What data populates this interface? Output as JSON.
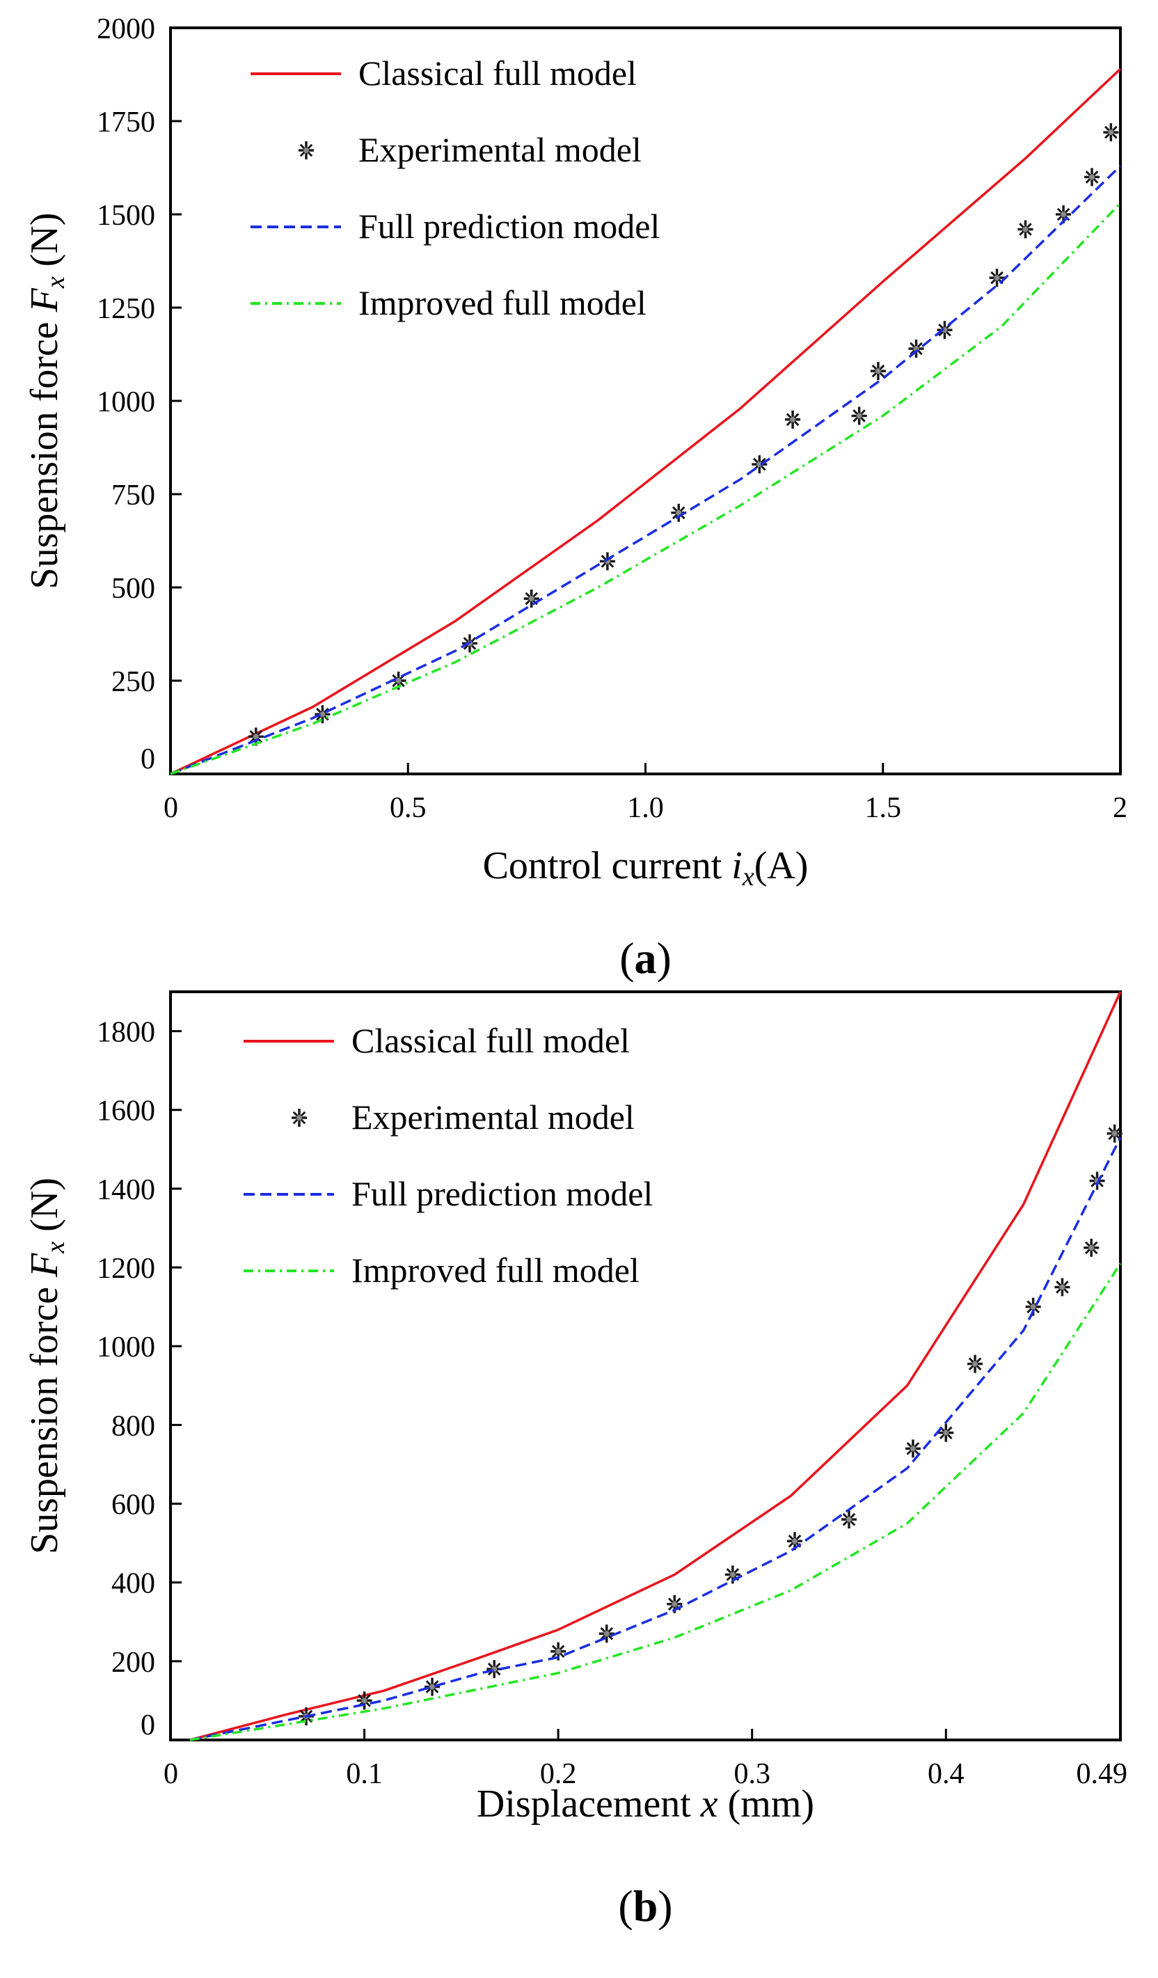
{
  "chart_data": [
    {
      "type": "line",
      "panel_label": "a",
      "xlabel": {
        "prefix": "Control current ",
        "var": "i",
        "sub": "x",
        "suffix": "(A)"
      },
      "ylabel": {
        "prefix": "Suspension force ",
        "var": "F",
        "sub": "x",
        "suffix": " (N)"
      },
      "xlim": [
        0,
        2
      ],
      "ylim": [
        0,
        2000
      ],
      "xticks": [
        0,
        0.5,
        1.0,
        1.5,
        2
      ],
      "xtick_labels": [
        "0",
        "0.5",
        "1.0",
        "1.5",
        "2"
      ],
      "yticks": [
        0,
        250,
        500,
        750,
        1000,
        1250,
        1500,
        1750,
        2000
      ],
      "ytick_labels": [
        "0",
        "250",
        "500",
        "750",
        "1000",
        "1250",
        "1500",
        "1750",
        "2000"
      ],
      "legend_position": "top-left",
      "grid": false,
      "series": [
        {
          "name": "Classical full model",
          "style": "solid",
          "color": "#e8141c",
          "x": [
            0,
            0.3,
            0.6,
            0.9,
            1.2,
            1.5,
            1.8,
            2.0
          ],
          "y": [
            0,
            180,
            410,
            680,
            980,
            1320,
            1650,
            1890
          ]
        },
        {
          "name": "Experimental model",
          "style": "markers",
          "color": "#1a1a1a",
          "x": [
            0.18,
            0.32,
            0.48,
            0.63,
            0.76,
            0.92,
            1.07,
            1.24,
            1.31,
            1.45,
            1.49,
            1.57,
            1.63,
            1.74,
            1.8,
            1.88,
            1.94,
            1.98
          ],
          "y": [
            100,
            160,
            250,
            350,
            470,
            570,
            700,
            830,
            950,
            960,
            1080,
            1140,
            1190,
            1330,
            1460,
            1500,
            1600,
            1720
          ]
        },
        {
          "name": "Full prediction model",
          "style": "dashed",
          "color": "#1a2ee0",
          "x": [
            0,
            0.3,
            0.6,
            0.9,
            1.2,
            1.5,
            1.75,
            2.0
          ],
          "y": [
            0,
            150,
            330,
            560,
            790,
            1060,
            1320,
            1630
          ]
        },
        {
          "name": "Improved full model",
          "style": "dashdot",
          "color": "#22e622",
          "x": [
            0,
            0.3,
            0.6,
            0.9,
            1.2,
            1.5,
            1.75,
            2.0
          ],
          "y": [
            0,
            135,
            300,
            500,
            720,
            960,
            1200,
            1530
          ]
        }
      ]
    },
    {
      "type": "line",
      "panel_label": "b",
      "xlabel": {
        "prefix": "Displacement ",
        "var": "x",
        "sub": "",
        "suffix": " (mm)"
      },
      "ylabel": {
        "prefix": "Suspension force ",
        "var": "F",
        "sub": "x",
        "suffix": " (N)"
      },
      "xlim": [
        0,
        0.49
      ],
      "ylim": [
        0,
        1900
      ],
      "xticks": [
        0,
        0.1,
        0.2,
        0.3,
        0.4,
        0.49
      ],
      "xtick_labels": [
        "0",
        "0.1",
        "0.2",
        "0.3",
        "0.4",
        "0.49"
      ],
      "yticks": [
        0,
        200,
        400,
        600,
        800,
        1000,
        1200,
        1400,
        1600,
        1800
      ],
      "ytick_labels": [
        "0",
        "200",
        "400",
        "600",
        "800",
        "1000",
        "1200",
        "1400",
        "1600",
        "1800"
      ],
      "legend_position": "top-left",
      "grid": false,
      "series": [
        {
          "name": "Classical full model",
          "style": "solid",
          "color": "#e8141c",
          "x": [
            0.01,
            0.06,
            0.11,
            0.16,
            0.2,
            0.26,
            0.32,
            0.38,
            0.44,
            0.49
          ],
          "y": [
            0,
            65,
            125,
            210,
            280,
            420,
            620,
            900,
            1360,
            1900
          ]
        },
        {
          "name": "Experimental model",
          "style": "markers",
          "color": "#1a1a1a",
          "x": [
            0.07,
            0.1,
            0.135,
            0.167,
            0.2,
            0.225,
            0.26,
            0.29,
            0.322,
            0.35,
            0.383,
            0.4,
            0.415,
            0.445,
            0.46,
            0.475,
            0.478,
            0.487
          ],
          "y": [
            60,
            100,
            135,
            180,
            225,
            270,
            345,
            420,
            505,
            560,
            740,
            780,
            955,
            1100,
            1150,
            1250,
            1420,
            1540
          ]
        },
        {
          "name": "Full prediction model",
          "style": "dashed",
          "color": "#1a2ee0",
          "x": [
            0.01,
            0.06,
            0.11,
            0.16,
            0.2,
            0.26,
            0.32,
            0.38,
            0.44,
            0.49
          ],
          "y": [
            0,
            50,
            100,
            170,
            210,
            330,
            480,
            690,
            1040,
            1530
          ]
        },
        {
          "name": "Improved full model",
          "style": "dashdot",
          "color": "#22e622",
          "x": [
            0.01,
            0.06,
            0.11,
            0.16,
            0.2,
            0.26,
            0.32,
            0.38,
            0.44,
            0.49
          ],
          "y": [
            0,
            40,
            80,
            130,
            170,
            260,
            380,
            550,
            830,
            1210
          ]
        }
      ]
    }
  ]
}
